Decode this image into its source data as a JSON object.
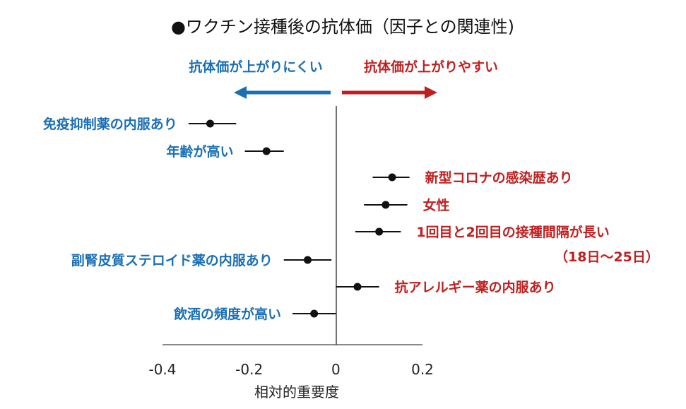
{
  "chart_data": {
    "type": "forest",
    "title": "●ワクチン接種後の抗体価（因子との関連性)",
    "xlabel": "相対的重要度",
    "xlim": [
      -0.4,
      0.2
    ],
    "xticks": [
      "-0.4",
      "-0.2",
      "0",
      "0.2"
    ],
    "direction_labels": {
      "left": "抗体価が上がりにくい",
      "right": "抗体価が上がりやすい"
    },
    "colors": {
      "negative": "#1a6fb5",
      "positive": "#c01f1f",
      "marker": "#111111"
    },
    "factors": [
      {
        "label": "免疫抑制薬の内服あり",
        "value": -0.29,
        "ci": [
          -0.34,
          -0.23
        ],
        "group": "negative"
      },
      {
        "label": "年齢が高い",
        "value": -0.16,
        "ci": [
          -0.21,
          -0.12
        ],
        "group": "negative"
      },
      {
        "label": "新型コロナの感染歴あり",
        "value": 0.13,
        "ci": [
          0.085,
          0.17
        ],
        "group": "positive"
      },
      {
        "label": "女性",
        "value": 0.115,
        "ci": [
          0.065,
          0.165
        ],
        "group": "positive"
      },
      {
        "label": "1回目と2回目の接種間隔が長い",
        "value": 0.1,
        "ci": [
          0.045,
          0.15
        ],
        "group": "positive",
        "sublabel": "（18日～25日）"
      },
      {
        "label": "副腎皮質ステロイド薬の内服あり",
        "value": -0.065,
        "ci": [
          -0.12,
          -0.01
        ],
        "group": "negative"
      },
      {
        "label": "抗アレルギー薬の内服あり",
        "value": 0.05,
        "ci": [
          0.0,
          0.1
        ],
        "group": "positive"
      },
      {
        "label": "飲酒の頻度が高い",
        "value": -0.05,
        "ci": [
          -0.1,
          0.0
        ],
        "group": "negative"
      }
    ]
  }
}
